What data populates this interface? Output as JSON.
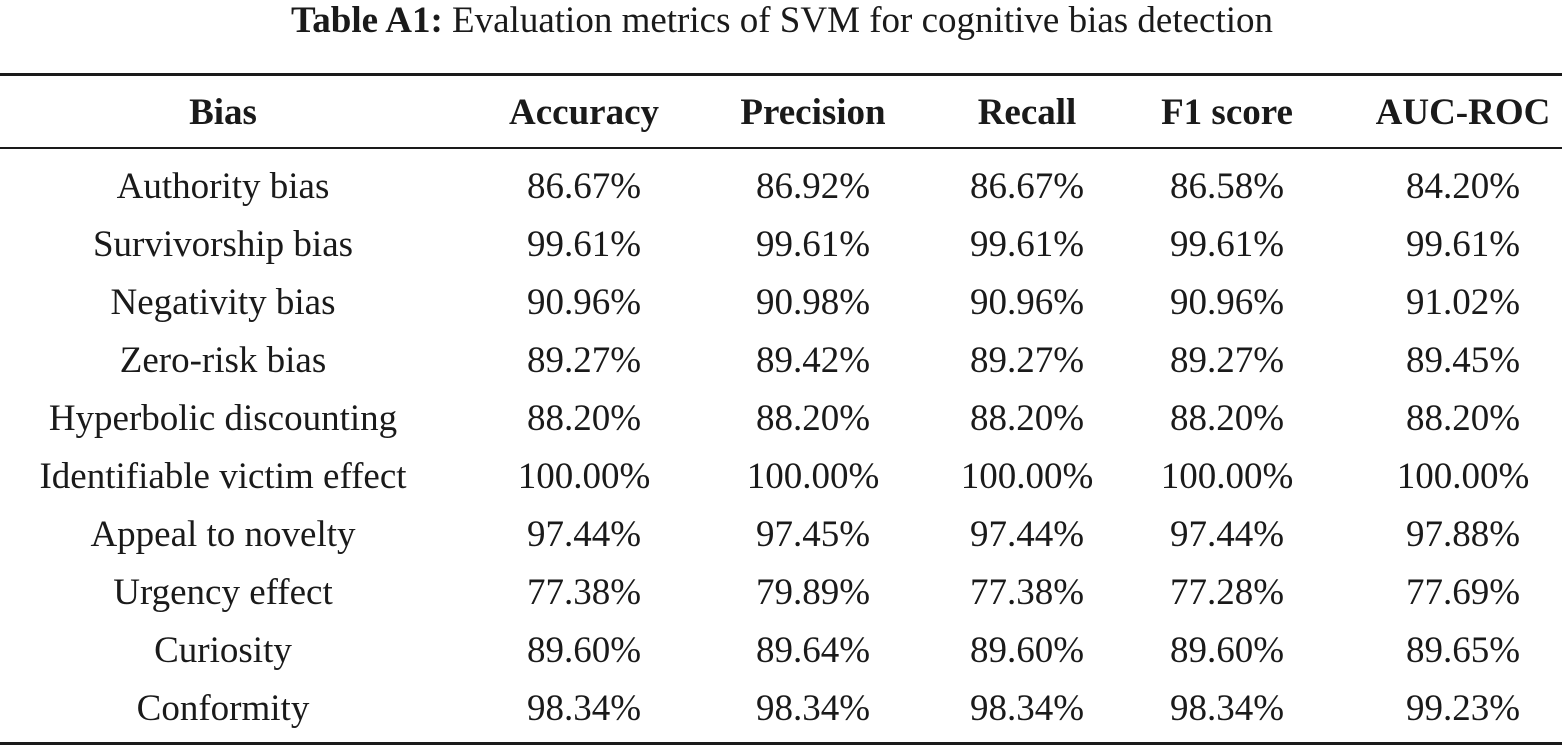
{
  "caption": {
    "label": "Table A1:",
    "text": "Evaluation metrics of SVM for cognitive bias detection"
  },
  "table": {
    "headers": [
      "Bias",
      "Accuracy",
      "Precision",
      "Recall",
      "F1 score",
      "AUC-ROC"
    ],
    "rows": [
      [
        "Authority bias",
        "86.67%",
        "86.92%",
        "86.67%",
        "86.58%",
        "84.20%"
      ],
      [
        "Survivorship bias",
        "99.61%",
        "99.61%",
        "99.61%",
        "99.61%",
        "99.61%"
      ],
      [
        "Negativity bias",
        "90.96%",
        "90.98%",
        "90.96%",
        "90.96%",
        "91.02%"
      ],
      [
        "Zero-risk bias",
        "89.27%",
        "89.42%",
        "89.27%",
        "89.27%",
        "89.45%"
      ],
      [
        "Hyperbolic discounting",
        "88.20%",
        "88.20%",
        "88.20%",
        "88.20%",
        "88.20%"
      ],
      [
        "Identifiable victim effect",
        "100.00%",
        "100.00%",
        "100.00%",
        "100.00%",
        "100.00%"
      ],
      [
        "Appeal to novelty",
        "97.44%",
        "97.45%",
        "97.44%",
        "97.44%",
        "97.88%"
      ],
      [
        "Urgency effect",
        "77.38%",
        "79.89%",
        "77.38%",
        "77.28%",
        "77.69%"
      ],
      [
        "Curiosity",
        "89.60%",
        "89.64%",
        "89.60%",
        "89.60%",
        "89.65%"
      ],
      [
        "Conformity",
        "98.34%",
        "98.34%",
        "98.34%",
        "98.34%",
        "99.23%"
      ]
    ]
  }
}
